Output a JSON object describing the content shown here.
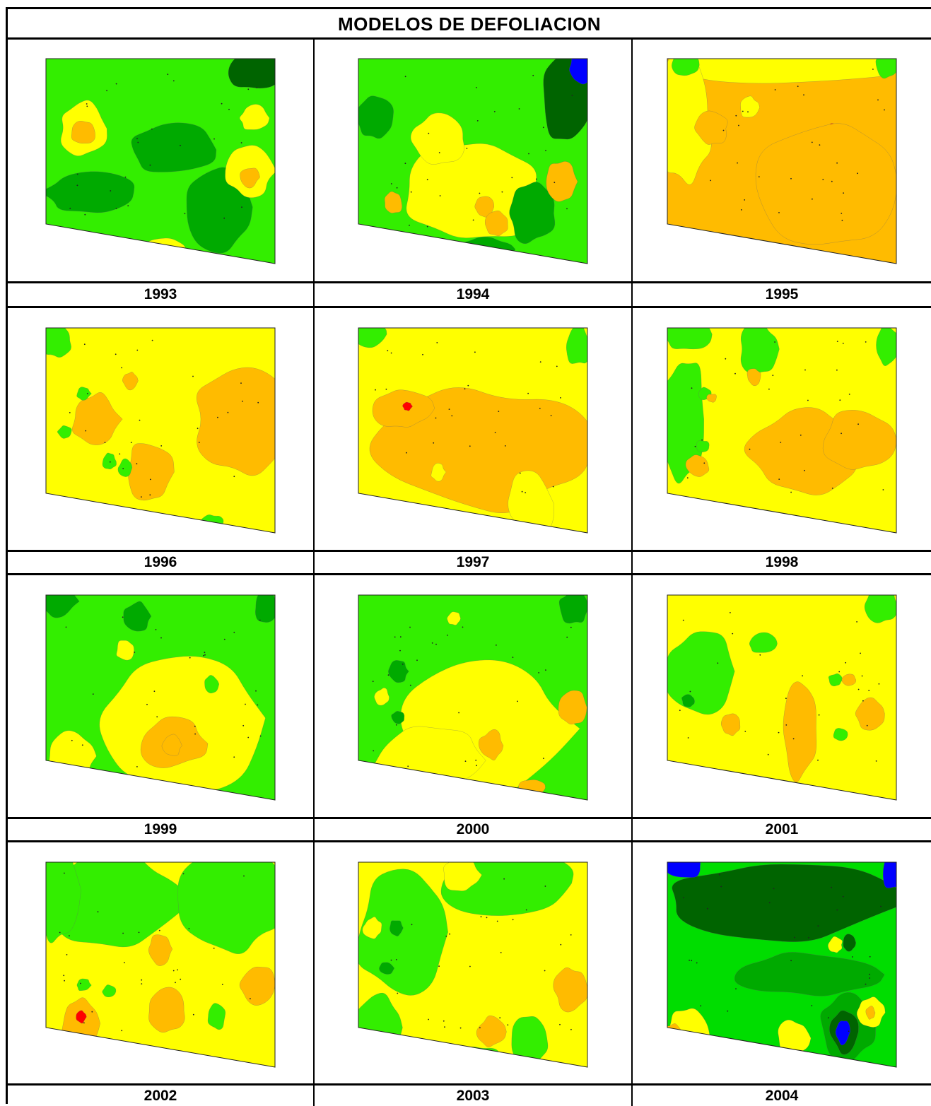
{
  "title": "MODELOS DE DEFOLIACION",
  "colors": {
    "blue": "#0000ff",
    "dark_green": "#006400",
    "mid_green": "#00aa00",
    "green": "#00dd00",
    "light_green": "#33ee00",
    "yellow": "#ffff00",
    "orange": "#ffbb00",
    "red": "#ff0000",
    "grid": "#000000"
  },
  "panels": [
    {
      "year": "1993",
      "base": "light_green"
    },
    {
      "year": "1994",
      "base": "light_green"
    },
    {
      "year": "1995",
      "base": "orange"
    },
    {
      "year": "1996",
      "base": "yellow"
    },
    {
      "year": "1997",
      "base": "yellow"
    },
    {
      "year": "1998",
      "base": "yellow"
    },
    {
      "year": "1999",
      "base": "light_green"
    },
    {
      "year": "2000",
      "base": "light_green"
    },
    {
      "year": "2001",
      "base": "yellow"
    },
    {
      "year": "2002",
      "base": "yellow"
    },
    {
      "year": "2003",
      "base": "yellow"
    },
    {
      "year": "2004",
      "base": "green"
    }
  ]
}
